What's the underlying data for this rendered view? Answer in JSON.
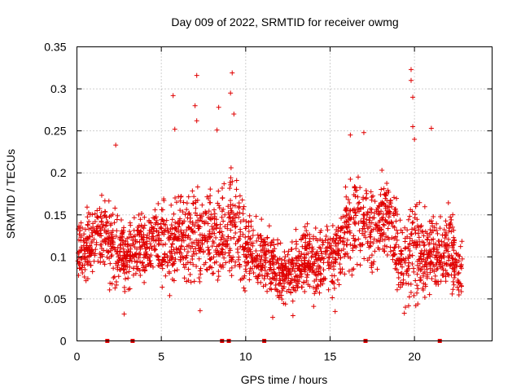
{
  "chart_data": {
    "type": "scatter",
    "title": "Day 009 of 2022, SRMTID for receiver owmg",
    "xlabel": "GPS time / hours",
    "ylabel": "SRMTID / TECUs",
    "xlim": [
      0,
      24.6
    ],
    "ylim": [
      0,
      0.35
    ],
    "grid": true,
    "x_tick_labels": [
      "0",
      "5",
      "10",
      "15",
      "20"
    ],
    "y_tick_labels": [
      "0",
      "0.05",
      "0.1",
      "0.15",
      "0.2",
      "0.25",
      "0.3",
      "0.35"
    ],
    "x_ticks": [
      0,
      5,
      10,
      15,
      20
    ],
    "y_ticks": [
      0,
      0.05,
      0.1,
      0.15,
      0.2,
      0.25,
      0.3,
      0.35
    ],
    "series": [
      {
        "name": "SRMTID",
        "color": "#e00000",
        "marker": "plus",
        "profile_hours": [
          0,
          0.5,
          1,
          1.5,
          2,
          2.5,
          3,
          3.5,
          4,
          4.5,
          5,
          5.5,
          6,
          6.5,
          7,
          7.5,
          8,
          8.5,
          9,
          9.5,
          10,
          10.5,
          11,
          11.5,
          12,
          12.5,
          13,
          13.5,
          14,
          14.5,
          15,
          15.5,
          16,
          16.5,
          17,
          17.5,
          18,
          18.5,
          19,
          19.5,
          20,
          20.5,
          21,
          21.5,
          22,
          22.5,
          23
        ],
        "profile_center": [
          0.11,
          0.11,
          0.12,
          0.13,
          0.11,
          0.11,
          0.1,
          0.11,
          0.11,
          0.12,
          0.12,
          0.11,
          0.12,
          0.12,
          0.13,
          0.12,
          0.12,
          0.12,
          0.14,
          0.13,
          0.11,
          0.1,
          0.1,
          0.09,
          0.08,
          0.08,
          0.09,
          0.1,
          0.09,
          0.09,
          0.1,
          0.11,
          0.13,
          0.14,
          0.14,
          0.13,
          0.15,
          0.15,
          0.11,
          0.1,
          0.11,
          0.1,
          0.11,
          0.1,
          0.11,
          0.09,
          0.08
        ],
        "profile_spread": [
          0.04,
          0.04,
          0.05,
          0.05,
          0.05,
          0.04,
          0.04,
          0.04,
          0.04,
          0.04,
          0.05,
          0.05,
          0.05,
          0.05,
          0.06,
          0.05,
          0.05,
          0.06,
          0.07,
          0.06,
          0.05,
          0.04,
          0.04,
          0.04,
          0.03,
          0.03,
          0.04,
          0.04,
          0.04,
          0.04,
          0.04,
          0.05,
          0.06,
          0.05,
          0.05,
          0.05,
          0.05,
          0.05,
          0.05,
          0.05,
          0.07,
          0.05,
          0.05,
          0.05,
          0.05,
          0.04,
          0.04
        ],
        "peaks": [
          {
            "x": 2.3,
            "y": 0.233
          },
          {
            "x": 5.7,
            "y": 0.292
          },
          {
            "x": 5.8,
            "y": 0.252
          },
          {
            "x": 7.1,
            "y": 0.316
          },
          {
            "x": 7.1,
            "y": 0.262
          },
          {
            "x": 7.0,
            "y": 0.28
          },
          {
            "x": 8.4,
            "y": 0.278
          },
          {
            "x": 8.3,
            "y": 0.251
          },
          {
            "x": 9.2,
            "y": 0.319
          },
          {
            "x": 9.1,
            "y": 0.295
          },
          {
            "x": 9.3,
            "y": 0.27
          },
          {
            "x": 16.2,
            "y": 0.245
          },
          {
            "x": 17.0,
            "y": 0.248
          },
          {
            "x": 19.8,
            "y": 0.323
          },
          {
            "x": 19.8,
            "y": 0.31
          },
          {
            "x": 19.9,
            "y": 0.29
          },
          {
            "x": 19.9,
            "y": 0.255
          },
          {
            "x": 20.0,
            "y": 0.24
          },
          {
            "x": 21.0,
            "y": 0.253
          }
        ],
        "lows": [
          {
            "x": 2.8,
            "y": 0.032
          },
          {
            "x": 11.6,
            "y": 0.028
          },
          {
            "x": 12.8,
            "y": 0.03
          },
          {
            "x": 15.3,
            "y": 0.035
          },
          {
            "x": 19.4,
            "y": 0.033
          },
          {
            "x": 7.3,
            "y": 0.036
          }
        ]
      },
      {
        "name": "zero markers",
        "color": "#e00000",
        "marker": "square",
        "x": [
          1.8,
          3.3,
          8.6,
          9.0,
          11.1,
          17.1,
          21.5
        ],
        "y": [
          0,
          0,
          0,
          0,
          0,
          0,
          0
        ]
      }
    ]
  }
}
